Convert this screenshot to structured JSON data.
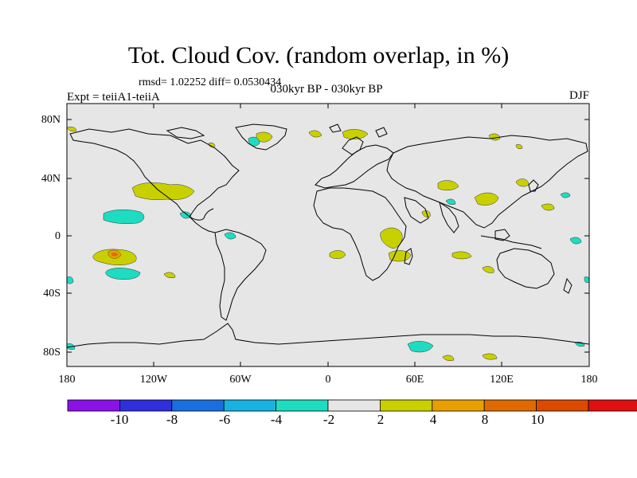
{
  "title": "Tot. Cloud Cov. (random overlap, in %)",
  "stats": "rmsd= 1.02252 diff= 0.0530434",
  "experiment": "Expt = teiiA1-teiiA",
  "period": "030kyr BP - 030kyr BP",
  "season": "DJF",
  "latitude_labels": [
    "80N",
    "40N",
    "0",
    "40S",
    "80S"
  ],
  "longitude_labels": [
    "180",
    "120W",
    "60W",
    "0",
    "60E",
    "120E",
    "180"
  ],
  "colorbar": {
    "colors": [
      "#8a12e6",
      "#2f2fdc",
      "#1a6fe0",
      "#17b3e0",
      "#1ddcc0",
      "#e6e6e6",
      "#c8d000",
      "#e8a000",
      "#e06a00",
      "#dc4a00",
      "#e01010"
    ],
    "labels": [
      "-10",
      "-8",
      "-6",
      "-4",
      "-2",
      "2",
      "4",
      "8",
      "10"
    ]
  },
  "colors": {
    "background": "#e6e6e6",
    "coast": "#000000",
    "yellow": "#c8d000",
    "cyan": "#1ddcc0",
    "orange": "#e8a000",
    "red": "#e06a00"
  }
}
